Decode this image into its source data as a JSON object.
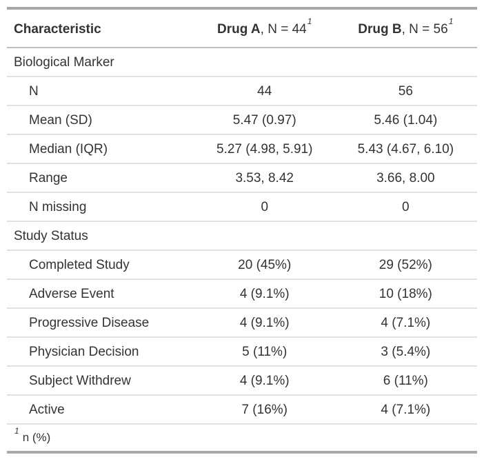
{
  "chart_data": {
    "type": "table",
    "header": {
      "characteristic_label": "Characteristic",
      "columns": [
        {
          "group": "Drug A",
          "n_suffix": ", N = 44",
          "footnote_mark": "1"
        },
        {
          "group": "Drug B",
          "n_suffix": ", N = 56",
          "footnote_mark": "1"
        }
      ]
    },
    "rows": [
      {
        "type": "group",
        "label": "Biological Marker"
      },
      {
        "type": "data",
        "label": "N",
        "drug_a": "44",
        "drug_b": "56"
      },
      {
        "type": "data",
        "label": "Mean (SD)",
        "drug_a": "5.47 (0.97)",
        "drug_b": "5.46 (1.04)"
      },
      {
        "type": "data",
        "label": "Median (IQR)",
        "drug_a": "5.27 (4.98, 5.91)",
        "drug_b": "5.43 (4.67, 6.10)"
      },
      {
        "type": "data",
        "label": "Range",
        "drug_a": "3.53, 8.42",
        "drug_b": "3.66, 8.00"
      },
      {
        "type": "data",
        "label": "N missing",
        "drug_a": "0",
        "drug_b": "0"
      },
      {
        "type": "group",
        "label": "Study Status"
      },
      {
        "type": "data",
        "label": "Completed Study",
        "drug_a": "20 (45%)",
        "drug_b": "29 (52%)"
      },
      {
        "type": "data",
        "label": "Adverse Event",
        "drug_a": "4 (9.1%)",
        "drug_b": "10 (18%)"
      },
      {
        "type": "data",
        "label": "Progressive Disease",
        "drug_a": "4 (9.1%)",
        "drug_b": "4 (7.1%)"
      },
      {
        "type": "data",
        "label": "Physician Decision",
        "drug_a": "5 (11%)",
        "drug_b": "3 (5.4%)"
      },
      {
        "type": "data",
        "label": "Subject Withdrew",
        "drug_a": "4 (9.1%)",
        "drug_b": "6 (11%)"
      },
      {
        "type": "data",
        "label": "Active",
        "drug_a": "7 (16%)",
        "drug_b": "4 (7.1%)"
      }
    ],
    "footnote": {
      "mark": "1",
      "text": "n (%)"
    }
  },
  "colors": {
    "text": "#333333",
    "thick_border": "#a8a8a8",
    "header_border": "#bdbdbd",
    "row_border": "#e0e0e0",
    "background": "#ffffff"
  }
}
